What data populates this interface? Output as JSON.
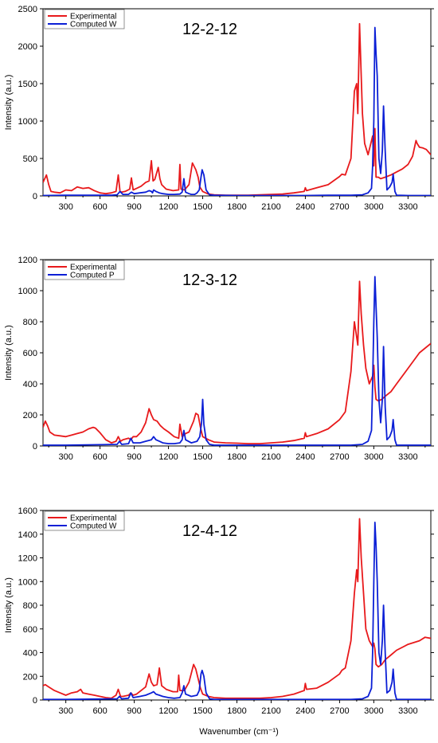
{
  "figure": {
    "xlabel": "Wavenumber (cm⁻¹)",
    "ylabel": "Intensity (a.u.)"
  },
  "colors": {
    "experimental": "#e8191b",
    "computed": "#0b1fd6"
  },
  "chart_data": [
    {
      "type": "line",
      "title": "12-2-12",
      "xlabel": "",
      "ylabel": "Intensity (a.u.)",
      "xlim": [
        100,
        3500
      ],
      "ylim": [
        0,
        2500
      ],
      "xticks": [
        300,
        600,
        900,
        1200,
        1500,
        1800,
        2100,
        2400,
        2700,
        3000,
        3300
      ],
      "yticks": [
        0,
        500,
        1000,
        1500,
        2000,
        2500
      ],
      "legend_position": "top-left",
      "series": [
        {
          "name": "Experimental",
          "color": "#e8191b",
          "x": [
            100,
            130,
            150,
            170,
            200,
            250,
            300,
            350,
            400,
            450,
            500,
            550,
            600,
            650,
            700,
            740,
            760,
            775,
            790,
            820,
            860,
            875,
            890,
            920,
            960,
            1000,
            1030,
            1050,
            1065,
            1080,
            1110,
            1125,
            1140,
            1180,
            1240,
            1290,
            1300,
            1310,
            1340,
            1380,
            1410,
            1440,
            1460,
            1475,
            1500,
            1550,
            1600,
            1700,
            1800,
            1900,
            2000,
            2100,
            2200,
            2300,
            2390,
            2400,
            2410,
            2500,
            2600,
            2700,
            2720,
            2750,
            2800,
            2830,
            2850,
            2860,
            2875,
            2900,
            2920,
            2950,
            2990,
            3000,
            3010,
            3020,
            3040,
            3060,
            3100,
            3150,
            3200,
            3250,
            3300,
            3340,
            3370,
            3380,
            3400,
            3430,
            3460,
            3500
          ],
          "y": [
            180,
            280,
            150,
            60,
            50,
            40,
            80,
            70,
            120,
            100,
            110,
            70,
            40,
            30,
            40,
            60,
            280,
            60,
            50,
            60,
            90,
            240,
            80,
            100,
            130,
            180,
            200,
            470,
            200,
            220,
            380,
            230,
            150,
            90,
            70,
            80,
            420,
            90,
            80,
            150,
            440,
            350,
            250,
            120,
            60,
            25,
            15,
            10,
            10,
            10,
            15,
            20,
            25,
            40,
            60,
            110,
            70,
            110,
            150,
            260,
            290,
            280,
            500,
            1400,
            1500,
            1100,
            2300,
            1100,
            700,
            550,
            800,
            400,
            900,
            250,
            250,
            230,
            250,
            280,
            320,
            360,
            420,
            530,
            740,
            700,
            650,
            640,
            620,
            550
          ]
        },
        {
          "name": "Computed W",
          "color": "#0b1fd6",
          "x": [
            100,
            300,
            600,
            700,
            750,
            775,
            800,
            850,
            875,
            900,
            950,
            1000,
            1030,
            1050,
            1060,
            1070,
            1090,
            1120,
            1150,
            1200,
            1250,
            1300,
            1320,
            1335,
            1350,
            1380,
            1400,
            1430,
            1450,
            1470,
            1485,
            1495,
            1510,
            1530,
            1560,
            1600,
            1800,
            2000,
            2200,
            2400,
            2600,
            2800,
            2900,
            2950,
            2980,
            2990,
            3000,
            3010,
            3020,
            3030,
            3045,
            3060,
            3075,
            3085,
            3100,
            3115,
            3140,
            3160,
            3170,
            3185,
            3200,
            3300,
            3500
          ],
          "y": [
            5,
            10,
            10,
            10,
            15,
            60,
            20,
            20,
            50,
            30,
            40,
            50,
            70,
            60,
            40,
            80,
            60,
            40,
            30,
            20,
            20,
            25,
            50,
            230,
            50,
            30,
            20,
            20,
            40,
            80,
            250,
            350,
            280,
            80,
            15,
            8,
            5,
            5,
            5,
            5,
            8,
            10,
            15,
            40,
            100,
            400,
            1000,
            2250,
            1900,
            1600,
            500,
            300,
            600,
            1200,
            600,
            80,
            120,
            180,
            290,
            60,
            10,
            5,
            5
          ]
        }
      ]
    },
    {
      "type": "line",
      "title": "12-3-12",
      "xlabel": "",
      "ylabel": "Intensity (a.u.)",
      "xlim": [
        100,
        3500
      ],
      "ylim": [
        0,
        1200
      ],
      "xticks": [
        300,
        600,
        900,
        1200,
        1500,
        1800,
        2100,
        2400,
        2700,
        3000,
        3300
      ],
      "yticks": [
        0,
        200,
        400,
        600,
        800,
        1000,
        1200
      ],
      "legend_position": "top-left",
      "series": [
        {
          "name": "Experimental",
          "color": "#e8191b",
          "x": [
            100,
            120,
            140,
            160,
            200,
            250,
            300,
            350,
            400,
            450,
            500,
            540,
            560,
            600,
            650,
            700,
            740,
            760,
            780,
            800,
            850,
            870,
            890,
            920,
            960,
            1000,
            1030,
            1050,
            1070,
            1100,
            1130,
            1160,
            1200,
            1250,
            1290,
            1300,
            1320,
            1350,
            1380,
            1420,
            1440,
            1460,
            1480,
            1500,
            1550,
            1600,
            1700,
            1800,
            1900,
            2000,
            2100,
            2200,
            2300,
            2390,
            2400,
            2410,
            2500,
            2600,
            2700,
            2720,
            2750,
            2800,
            2830,
            2850,
            2860,
            2875,
            2890,
            2910,
            2930,
            2960,
            2990,
            3000,
            3010,
            3020,
            3040,
            3070,
            3100,
            3150,
            3200,
            3300,
            3400,
            3500
          ],
          "y": [
            120,
            160,
            130,
            90,
            70,
            65,
            60,
            70,
            80,
            90,
            110,
            120,
            115,
            85,
            40,
            20,
            30,
            60,
            30,
            40,
            50,
            40,
            60,
            60,
            90,
            150,
            240,
            200,
            170,
            160,
            130,
            110,
            90,
            60,
            50,
            140,
            60,
            80,
            90,
            160,
            210,
            200,
            120,
            60,
            40,
            25,
            20,
            18,
            15,
            15,
            20,
            25,
            35,
            50,
            85,
            60,
            80,
            110,
            170,
            190,
            220,
            480,
            800,
            700,
            650,
            1060,
            850,
            650,
            500,
            400,
            450,
            520,
            380,
            300,
            290,
            300,
            320,
            350,
            400,
            500,
            600,
            660
          ]
        },
        {
          "name": "Computed  P",
          "color": "#0b1fd6",
          "x": [
            100,
            300,
            600,
            750,
            770,
            790,
            850,
            870,
            890,
            950,
            1000,
            1050,
            1070,
            1090,
            1120,
            1150,
            1200,
            1250,
            1300,
            1320,
            1335,
            1350,
            1400,
            1450,
            1475,
            1490,
            1500,
            1510,
            1530,
            1560,
            1600,
            1800,
            2000,
            2200,
            2400,
            2600,
            2800,
            2900,
            2950,
            2980,
            2990,
            3000,
            3010,
            3020,
            3030,
            3045,
            3060,
            3075,
            3085,
            3100,
            3115,
            3140,
            3160,
            3170,
            3185,
            3200,
            3300,
            3500
          ],
          "y": [
            5,
            5,
            8,
            10,
            30,
            10,
            15,
            50,
            20,
            20,
            30,
            40,
            60,
            40,
            30,
            20,
            15,
            15,
            20,
            40,
            100,
            40,
            20,
            30,
            60,
            150,
            300,
            140,
            40,
            10,
            5,
            5,
            5,
            5,
            5,
            5,
            5,
            10,
            30,
            100,
            400,
            800,
            1090,
            900,
            700,
            300,
            150,
            300,
            640,
            250,
            40,
            60,
            100,
            170,
            40,
            5,
            5,
            5
          ]
        }
      ]
    },
    {
      "type": "line",
      "title": "12-4-12",
      "xlabel": "Wavenumber (cm⁻¹)",
      "ylabel": "Intensity (a.u.)",
      "xlim": [
        100,
        3500
      ],
      "ylim": [
        0,
        1600
      ],
      "xticks": [
        300,
        600,
        900,
        1200,
        1500,
        1800,
        2100,
        2400,
        2700,
        3000,
        3300
      ],
      "yticks": [
        0,
        200,
        400,
        600,
        800,
        1000,
        1200,
        1400,
        1600
      ],
      "legend_position": "top-left",
      "series": [
        {
          "name": "Experimental",
          "color": "#e8191b",
          "x": [
            100,
            120,
            150,
            200,
            250,
            300,
            350,
            400,
            430,
            450,
            500,
            550,
            600,
            650,
            700,
            740,
            760,
            780,
            800,
            850,
            870,
            890,
            920,
            960,
            1000,
            1030,
            1050,
            1070,
            1100,
            1120,
            1140,
            1180,
            1240,
            1280,
            1290,
            1300,
            1340,
            1380,
            1420,
            1440,
            1460,
            1480,
            1500,
            1550,
            1600,
            1700,
            1800,
            1900,
            2000,
            2100,
            2200,
            2300,
            2390,
            2400,
            2410,
            2500,
            2600,
            2700,
            2720,
            2750,
            2800,
            2830,
            2850,
            2860,
            2875,
            2890,
            2910,
            2930,
            2960,
            2990,
            3000,
            3010,
            3020,
            3040,
            3070,
            3100,
            3150,
            3200,
            3300,
            3400,
            3450,
            3500
          ],
          "y": [
            120,
            130,
            110,
            80,
            60,
            40,
            60,
            70,
            90,
            60,
            50,
            40,
            30,
            20,
            15,
            40,
            90,
            30,
            30,
            40,
            60,
            40,
            50,
            80,
            110,
            220,
            150,
            120,
            130,
            270,
            120,
            90,
            70,
            70,
            210,
            80,
            80,
            150,
            300,
            260,
            180,
            100,
            50,
            30,
            20,
            15,
            15,
            15,
            15,
            20,
            30,
            50,
            80,
            140,
            90,
            100,
            150,
            220,
            250,
            270,
            500,
            900,
            1100,
            1000,
            1530,
            1200,
            900,
            600,
            500,
            450,
            480,
            430,
            300,
            280,
            300,
            340,
            380,
            420,
            470,
            500,
            530,
            520
          ]
        },
        {
          "name": "Computed W",
          "color": "#0b1fd6",
          "x": [
            100,
            300,
            600,
            750,
            770,
            790,
            850,
            870,
            890,
            950,
            1000,
            1050,
            1070,
            1090,
            1120,
            1150,
            1200,
            1250,
            1300,
            1320,
            1335,
            1350,
            1400,
            1450,
            1470,
            1485,
            1495,
            1510,
            1530,
            1560,
            1600,
            1800,
            2000,
            2200,
            2400,
            2600,
            2800,
            2900,
            2950,
            2980,
            2990,
            3000,
            3010,
            3020,
            3030,
            3045,
            3060,
            3075,
            3085,
            3100,
            3115,
            3140,
            3160,
            3170,
            3185,
            3200,
            3300,
            3500
          ],
          "y": [
            5,
            5,
            8,
            10,
            30,
            10,
            15,
            60,
            20,
            30,
            40,
            60,
            70,
            50,
            40,
            30,
            20,
            15,
            20,
            60,
            120,
            50,
            30,
            40,
            80,
            220,
            250,
            200,
            60,
            10,
            5,
            5,
            5,
            5,
            5,
            5,
            5,
            10,
            30,
            100,
            400,
            1000,
            1500,
            1300,
            1000,
            400,
            300,
            500,
            800,
            400,
            60,
            80,
            150,
            260,
            60,
            5,
            5,
            5
          ]
        }
      ]
    }
  ]
}
